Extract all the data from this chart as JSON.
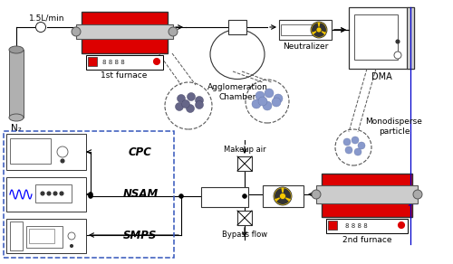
{
  "bg_color": "#ffffff",
  "red_color": "#dd0000",
  "blue_line_color": "#0000cc",
  "dashed_color": "#555555",
  "blue_box_color": "#3355bb",
  "gray_color": "#aaaaaa",
  "dark_gray": "#888888",
  "furnace1_label": "1st furnace",
  "furnace2_label": "2nd furnace",
  "agglom_label": "Agglomeration\nChamber",
  "neutralizer_label": "Neutralizer",
  "dma_label": "DMA",
  "n2_label": "N₂",
  "flow_label": "1.5L/min",
  "cpc_label": "CPC",
  "nsam_label": "NSAM",
  "smps_label": "SMPS",
  "makeup_label": "Makeup air",
  "bypass_label": "Bypass flow",
  "monodisperse_label": "Monodisperse\nparticle"
}
